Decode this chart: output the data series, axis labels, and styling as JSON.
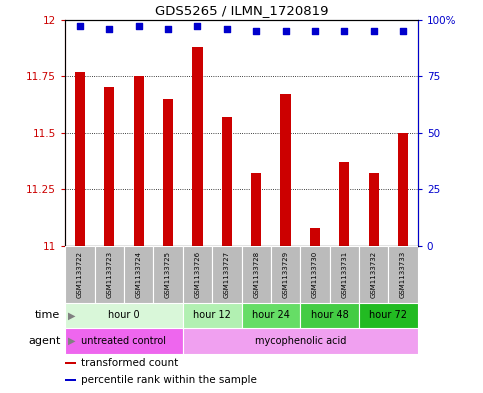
{
  "title": "GDS5265 / ILMN_1720819",
  "samples": [
    "GSM1133722",
    "GSM1133723",
    "GSM1133724",
    "GSM1133725",
    "GSM1133726",
    "GSM1133727",
    "GSM1133728",
    "GSM1133729",
    "GSM1133730",
    "GSM1133731",
    "GSM1133732",
    "GSM1133733"
  ],
  "bar_values": [
    11.77,
    11.7,
    11.75,
    11.65,
    11.88,
    11.57,
    11.32,
    11.67,
    11.08,
    11.37,
    11.32,
    11.5
  ],
  "percentile_values": [
    97,
    96,
    97,
    96,
    97,
    96,
    95,
    95,
    95,
    95,
    95,
    95
  ],
  "bar_color": "#cc0000",
  "percentile_color": "#0000cc",
  "ylim_left": [
    11,
    12
  ],
  "ylim_right": [
    0,
    100
  ],
  "yticks_left": [
    11,
    11.25,
    11.5,
    11.75,
    12
  ],
  "ytick_labels_left": [
    "11",
    "11.25",
    "11.5",
    "11.75",
    "12"
  ],
  "yticks_right": [
    0,
    25,
    50,
    75,
    100
  ],
  "ytick_labels_right": [
    "0",
    "25",
    "50",
    "75",
    "100%"
  ],
  "time_groups": [
    {
      "label": "hour 0",
      "start": 0,
      "end": 4,
      "color": "#d9f7d9"
    },
    {
      "label": "hour 12",
      "start": 4,
      "end": 6,
      "color": "#b2f0b2"
    },
    {
      "label": "hour 24",
      "start": 6,
      "end": 8,
      "color": "#66dd66"
    },
    {
      "label": "hour 48",
      "start": 8,
      "end": 10,
      "color": "#44cc44"
    },
    {
      "label": "hour 72",
      "start": 10,
      "end": 12,
      "color": "#22bb22"
    }
  ],
  "agent_groups": [
    {
      "label": "untreated control",
      "start": 0,
      "end": 4,
      "color": "#ee66ee"
    },
    {
      "label": "mycophenolic acid",
      "start": 4,
      "end": 12,
      "color": "#f0a0f0"
    }
  ],
  "bg_color": "#ffffff",
  "sample_bg_color": "#bbbbbb",
  "legend_items": [
    {
      "color": "#cc0000",
      "label": "transformed count"
    },
    {
      "color": "#0000cc",
      "label": "percentile rank within the sample"
    }
  ],
  "time_label": "time",
  "agent_label": "agent"
}
